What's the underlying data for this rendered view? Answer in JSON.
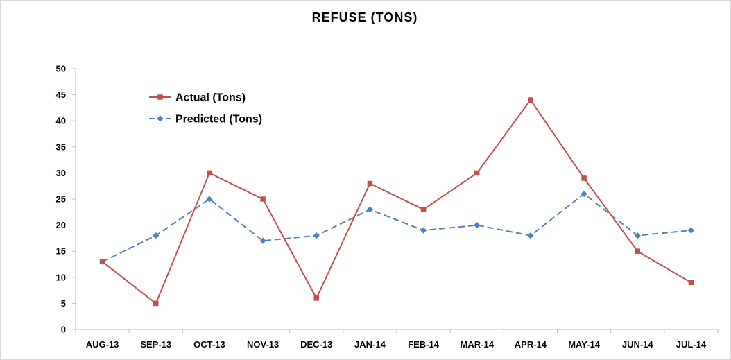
{
  "chart_data": {
    "type": "line",
    "title": "REFUSE (TONS)",
    "xlabel": "",
    "ylabel": "",
    "categories": [
      "AUG-13",
      "SEP-13",
      "OCT-13",
      "NOV-13",
      "DEC-13",
      "JAN-14",
      "FEB-14",
      "MAR-14",
      "APR-14",
      "MAY-14",
      "JUN-14",
      "JUL-14"
    ],
    "ylim": [
      0,
      50
    ],
    "yticks": [
      0,
      5,
      10,
      15,
      20,
      25,
      30,
      35,
      40,
      45,
      50
    ],
    "grid": false,
    "legend_position": "top-left",
    "series": [
      {
        "name": "Actual (Tons)",
        "color": "#c0504d",
        "marker": "square",
        "line_style": "solid",
        "values": [
          13,
          5,
          30,
          25,
          6,
          28,
          23,
          30,
          44,
          29,
          15,
          9
        ]
      },
      {
        "name": "Predicted (Tons)",
        "color": "#4f81bd",
        "marker": "diamond",
        "line_style": "dashed",
        "values": [
          13,
          18,
          25,
          17,
          18,
          23,
          19,
          20,
          18,
          26,
          18,
          19
        ]
      }
    ]
  }
}
